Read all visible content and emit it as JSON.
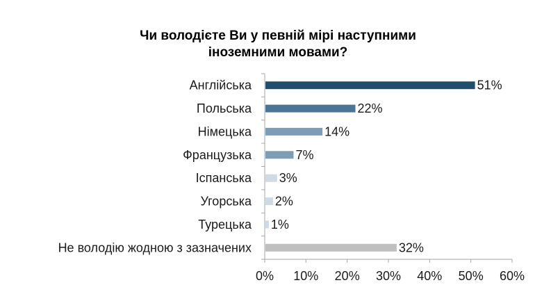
{
  "chart_data": {
    "type": "bar",
    "orientation": "horizontal",
    "title": "Чи володієте Ви у певній мірі наступними іноземними мовами?",
    "xlabel": "",
    "ylabel": "",
    "categories": [
      "Англійська",
      "Польська",
      "Німецька",
      "Французька",
      "Іспанська",
      "Угорська",
      "Турецька",
      "Не володію жодною з зазначених"
    ],
    "values": [
      51,
      22,
      14,
      7,
      3,
      2,
      1,
      32
    ],
    "value_labels": [
      "51%",
      "22%",
      "14%",
      "7%",
      "3%",
      "2%",
      "1%",
      "32%"
    ],
    "bar_colors": [
      "#1f4e6e",
      "#4a7596",
      "#7d9db5",
      "#7d9db5",
      "#cfdbe4",
      "#cfdbe4",
      "#cfdbe4",
      "#bfbfbf"
    ],
    "xlim": [
      0,
      60
    ],
    "xticks": [
      0,
      10,
      20,
      30,
      40,
      50,
      60
    ],
    "xtick_labels": [
      "0%",
      "10%",
      "20%",
      "30%",
      "40%",
      "50%",
      "60%"
    ],
    "grid": false,
    "legend": "none"
  }
}
